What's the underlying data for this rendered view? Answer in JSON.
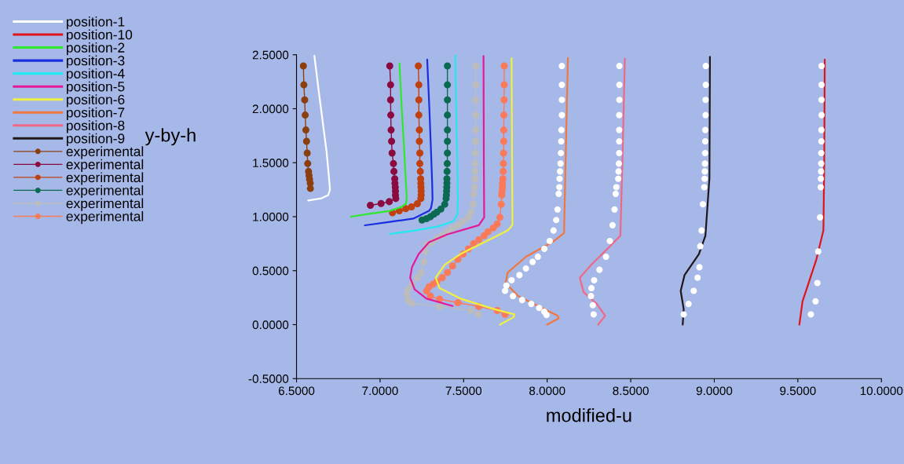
{
  "chart_data": {
    "type": "line",
    "xlabel": "modified-u",
    "ylabel": "y-by-h",
    "legend": "top left",
    "xlim": [
      6.5,
      10.0
    ],
    "ylim": [
      -0.5,
      2.5
    ],
    "xticks": [
      {
        "value": 6.5,
        "label": "6.5000"
      },
      {
        "value": 7.0,
        "label": "7.0000"
      },
      {
        "value": 7.5,
        "label": "7.5000"
      },
      {
        "value": 8.0,
        "label": "8.0000"
      },
      {
        "value": 8.5,
        "label": "8.5000"
      },
      {
        "value": 9.0,
        "label": "9.0000"
      },
      {
        "value": 9.5,
        "label": "9.5000"
      },
      {
        "value": 10.0,
        "label": "10.0000"
      }
    ],
    "yticks": [
      {
        "value": -0.5,
        "label": "-0.5000"
      },
      {
        "value": 0.0,
        "label": "0.0000"
      },
      {
        "value": 0.5,
        "label": "0.5000"
      },
      {
        "value": 1.0,
        "label": "1.0000"
      },
      {
        "value": 1.5,
        "label": "1.5000"
      },
      {
        "value": 2.0,
        "label": "2.0000"
      },
      {
        "value": 2.5,
        "label": "2.5000"
      }
    ],
    "series": [
      {
        "name": "position-1",
        "color": "#ffffff",
        "marker": "none",
        "x": [
          6.607,
          6.63,
          6.655,
          6.68,
          6.695,
          6.7,
          6.69,
          6.65,
          6.57
        ],
        "values": [
          2.49,
          2.2,
          1.9,
          1.6,
          1.35,
          1.25,
          1.2,
          1.17,
          1.15
        ]
      },
      {
        "name": "position-10",
        "color": "#e0151b",
        "marker": "none",
        "x": [
          9.661,
          9.658,
          9.653,
          9.611,
          9.575,
          9.528,
          9.509
        ],
        "values": [
          2.456,
          1.5,
          0.872,
          0.605,
          0.435,
          0.216,
          0.0
        ]
      },
      {
        "name": "position-2",
        "color": "#2ee82e",
        "marker": "none",
        "x": [
          7.116,
          7.13,
          7.145,
          7.155,
          7.16,
          7.155,
          7.128,
          7.06,
          6.95,
          6.826
        ],
        "values": [
          2.42,
          2.0,
          1.6,
          1.3,
          1.18,
          1.12,
          1.09,
          1.054,
          1.03,
          1.0
        ]
      },
      {
        "name": "position-3",
        "color": "#1a2ee0",
        "marker": "none",
        "x": [
          7.282,
          7.295,
          7.305,
          7.312,
          7.314,
          7.305,
          7.293,
          7.199,
          7.05,
          6.909
        ],
        "values": [
          2.456,
          2.0,
          1.6,
          1.3,
          1.16,
          1.08,
          1.054,
          0.982,
          0.95,
          0.92
        ]
      },
      {
        "name": "position-4",
        "color": "#22e8f0",
        "marker": "none",
        "x": [
          7.45,
          7.455,
          7.462,
          7.466,
          7.462,
          7.44,
          7.35,
          7.2,
          7.058
        ],
        "values": [
          2.5,
          2.0,
          1.5,
          1.15,
          1.02,
          0.96,
          0.91,
          0.87,
          0.84
        ]
      },
      {
        "name": "position-5",
        "color": "#e6189a",
        "marker": "none",
        "x": [
          7.619,
          7.621,
          7.623,
          7.591,
          7.403,
          7.293,
          7.231,
          7.191,
          7.18,
          7.207,
          7.278,
          7.434
        ],
        "values": [
          2.488,
          1.5,
          0.994,
          0.921,
          0.836,
          0.763,
          0.654,
          0.532,
          0.435,
          0.326,
          0.241,
          0.173
        ]
      },
      {
        "name": "position-6",
        "color": "#f0f040",
        "marker": "none",
        "x": [
          7.787,
          7.79,
          7.792,
          7.764,
          7.638,
          7.481,
          7.387,
          7.333,
          7.356,
          7.481,
          7.685,
          7.803,
          7.8,
          7.717
        ],
        "values": [
          2.468,
          1.5,
          0.921,
          0.872,
          0.775,
          0.654,
          0.556,
          0.435,
          0.338,
          0.241,
          0.143,
          0.095,
          0.07,
          0.0
        ]
      },
      {
        "name": "position-7",
        "color": "#f07840",
        "marker": "none",
        "x": [
          8.124,
          8.11,
          8.101,
          8.03,
          7.873,
          7.764,
          7.751,
          7.826,
          7.952,
          8.062,
          8.069,
          7.999
        ],
        "values": [
          2.47,
          1.5,
          0.848,
          0.763,
          0.629,
          0.483,
          0.386,
          0.265,
          0.168,
          0.083,
          0.058,
          0.0
        ]
      },
      {
        "name": "position-8",
        "color": "#f06888",
        "marker": "none",
        "x": [
          8.465,
          8.45,
          8.438,
          8.36,
          8.265,
          8.195,
          8.218,
          8.297,
          8.347,
          8.305
        ],
        "values": [
          2.464,
          1.5,
          0.824,
          0.702,
          0.556,
          0.435,
          0.301,
          0.192,
          0.083,
          0.0
        ]
      },
      {
        "name": "position-9",
        "color": "#201818",
        "marker": "none",
        "x": [
          8.974,
          8.971,
          8.947,
          8.908,
          8.822,
          8.799,
          8.817,
          8.811
        ],
        "values": [
          2.481,
          1.358,
          0.824,
          0.654,
          0.459,
          0.313,
          0.143,
          0.0
        ]
      },
      {
        "name": "experimental",
        "color": "#8b3f0f",
        "marker": "circle",
        "x": [
          6.541,
          6.544,
          6.549,
          6.552,
          6.556,
          6.56,
          6.564,
          6.567,
          6.572,
          6.575,
          6.578,
          6.582,
          6.583
        ],
        "values": [
          2.396,
          2.221,
          2.082,
          1.941,
          1.803,
          1.698,
          1.589,
          1.492,
          1.419,
          1.382,
          1.346,
          1.31,
          1.261
        ]
      },
      {
        "name": "experimental",
        "color": "#8b0a40",
        "marker": "circle",
        "x": [
          7.058,
          7.063,
          7.063,
          7.064,
          7.066,
          7.069,
          7.072,
          7.08,
          7.083,
          7.088,
          7.089,
          7.091,
          7.092,
          7.092,
          7.094,
          7.055,
          7.006,
          6.942
        ],
        "values": [
          2.396,
          2.221,
          2.082,
          1.941,
          1.803,
          1.698,
          1.589,
          1.492,
          1.419,
          1.351,
          1.31,
          1.273,
          1.237,
          1.2,
          1.168,
          1.139,
          1.122,
          1.105
        ]
      },
      {
        "name": "experimental",
        "color": "#c0400f",
        "marker": "circle",
        "x": [
          7.229,
          7.232,
          7.232,
          7.232,
          7.235,
          7.235,
          7.238,
          7.238,
          7.241,
          7.243,
          7.244,
          7.245,
          7.246,
          7.246,
          7.244,
          7.223,
          7.188,
          7.154,
          7.115,
          7.074
        ],
        "values": [
          2.396,
          2.221,
          2.082,
          1.941,
          1.803,
          1.698,
          1.589,
          1.492,
          1.419,
          1.351,
          1.31,
          1.273,
          1.237,
          1.2,
          1.168,
          1.12,
          1.091,
          1.074,
          1.054,
          1.036
        ]
      },
      {
        "name": "experimental",
        "color": "#0b6b52",
        "marker": "circle",
        "x": [
          7.403,
          7.403,
          7.403,
          7.403,
          7.403,
          7.403,
          7.403,
          7.402,
          7.401,
          7.4,
          7.4,
          7.399,
          7.398,
          7.397,
          7.395,
          7.387,
          7.364,
          7.34,
          7.322,
          7.301,
          7.278,
          7.251
        ],
        "values": [
          2.396,
          2.221,
          2.082,
          1.941,
          1.803,
          1.698,
          1.589,
          1.492,
          1.419,
          1.351,
          1.31,
          1.273,
          1.237,
          1.2,
          1.168,
          1.115,
          1.071,
          1.042,
          1.023,
          0.999,
          0.982,
          0.969
        ]
      },
      {
        "name": "experimental",
        "color": "#bcbcbc",
        "marker": "circle",
        "x": [
          7.572,
          7.572,
          7.572,
          7.572,
          7.572,
          7.571,
          7.57,
          7.569,
          7.569,
          7.568,
          7.566,
          7.56,
          7.557,
          7.544,
          7.529,
          7.497,
          7.466,
          7.434,
          7.403,
          7.372,
          7.34,
          7.309,
          7.278,
          7.27,
          7.262,
          7.246,
          7.223,
          7.191,
          7.168,
          7.16,
          7.168,
          7.191,
          7.356,
          7.544,
          7.588
        ],
        "values": [
          2.396,
          2.221,
          2.082,
          1.941,
          1.803,
          1.698,
          1.589,
          1.492,
          1.419,
          1.351,
          1.273,
          1.212,
          1.115,
          1.042,
          0.994,
          0.957,
          0.921,
          0.896,
          0.86,
          0.828,
          0.799,
          0.763,
          0.739,
          0.678,
          0.581,
          0.483,
          0.435,
          0.374,
          0.326,
          0.277,
          0.228,
          0.197,
          0.168,
          0.131,
          0.095
        ]
      },
      {
        "name": "experimental",
        "color": "#fa7a5a",
        "marker": "circle",
        "x": [
          7.743,
          7.743,
          7.742,
          7.741,
          7.74,
          7.74,
          7.739,
          7.738,
          7.737,
          7.735,
          7.733,
          7.732,
          7.73,
          7.728,
          7.725,
          7.717,
          7.701,
          7.678,
          7.646,
          7.623,
          7.591,
          7.56,
          7.529,
          7.497,
          7.466,
          7.434,
          7.403,
          7.372,
          7.34,
          7.317,
          7.293,
          7.278,
          7.301,
          7.356,
          7.466,
          7.591,
          7.701,
          7.748
        ],
        "values": [
          2.396,
          2.221,
          2.082,
          1.941,
          1.803,
          1.698,
          1.589,
          1.492,
          1.419,
          1.351,
          1.31,
          1.273,
          1.237,
          1.2,
          1.115,
          0.994,
          0.933,
          0.896,
          0.86,
          0.824,
          0.787,
          0.751,
          0.702,
          0.654,
          0.605,
          0.544,
          0.483,
          0.435,
          0.398,
          0.374,
          0.35,
          0.313,
          0.265,
          0.236,
          0.204,
          0.168,
          0.131,
          0.095
        ]
      },
      {
        "type": "scatter",
        "color": "#ffffff",
        "marker": "circle",
        "x": [
          8.088,
          8.088,
          8.088,
          8.088,
          8.085,
          8.084,
          8.082,
          8.08,
          8.077,
          8.074,
          8.073,
          8.069,
          8.062,
          8.054,
          8.038,
          8.015,
          7.983,
          7.944,
          7.913,
          7.873,
          7.834,
          7.787,
          7.756,
          7.748,
          7.795,
          7.85,
          7.905,
          7.952,
          7.983,
          7.996
        ],
        "values": [
          2.396,
          2.221,
          2.082,
          1.941,
          1.803,
          1.698,
          1.589,
          1.492,
          1.419,
          1.351,
          1.273,
          1.212,
          1.067,
          0.969,
          0.872,
          0.775,
          0.702,
          0.629,
          0.581,
          0.52,
          0.459,
          0.411,
          0.362,
          0.313,
          0.265,
          0.228,
          0.192,
          0.155,
          0.119,
          0.09
        ]
      },
      {
        "type": "scatter",
        "color": "#ffffff",
        "marker": "circle",
        "x": [
          8.432,
          8.432,
          8.432,
          8.431,
          8.431,
          8.431,
          8.431,
          8.429,
          8.427,
          8.425,
          8.414,
          8.41,
          8.403,
          8.391,
          8.375,
          8.352,
          8.313,
          8.281,
          8.265,
          8.262,
          8.273,
          8.278
        ],
        "values": [
          2.396,
          2.221,
          2.082,
          1.941,
          1.803,
          1.698,
          1.589,
          1.492,
          1.419,
          1.351,
          1.273,
          1.212,
          1.067,
          0.921,
          0.775,
          0.629,
          0.508,
          0.411,
          0.338,
          0.265,
          0.18,
          0.095
        ]
      },
      {
        "type": "scatter",
        "color": "#ffffff",
        "marker": "circle",
        "x": [
          8.949,
          8.949,
          8.948,
          8.948,
          8.946,
          8.946,
          8.945,
          8.944,
          8.943,
          8.942,
          8.94,
          8.932,
          8.924,
          8.916,
          8.911,
          8.9,
          8.877,
          8.846,
          8.817
        ],
        "values": [
          2.396,
          2.221,
          2.082,
          1.941,
          1.803,
          1.698,
          1.589,
          1.492,
          1.419,
          1.351,
          1.273,
          1.115,
          0.872,
          0.726,
          0.532,
          0.435,
          0.313,
          0.192,
          0.095
        ]
      },
      {
        "type": "scatter",
        "color": "#ffffff",
        "marker": "circle",
        "x": [
          9.642,
          9.642,
          9.642,
          9.642,
          9.641,
          9.641,
          9.64,
          9.64,
          9.639,
          9.638,
          9.637,
          9.633,
          9.622,
          9.617,
          9.606,
          9.578
        ],
        "values": [
          2.396,
          2.221,
          2.082,
          1.941,
          1.803,
          1.698,
          1.589,
          1.492,
          1.419,
          1.351,
          1.273,
          0.994,
          0.678,
          0.386,
          0.216,
          0.095
        ]
      }
    ]
  }
}
